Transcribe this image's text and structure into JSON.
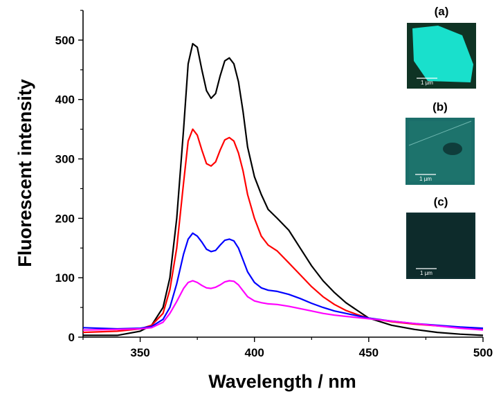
{
  "chart_data": {
    "type": "line",
    "title": "",
    "xlabel": "Wavelength / nm",
    "ylabel": "Fluorescent intensity",
    "xlim": [
      325,
      500
    ],
    "ylim": [
      0,
      550
    ],
    "xticks": [
      350,
      400,
      450,
      500
    ],
    "yticks": [
      0,
      100,
      200,
      300,
      400,
      500
    ],
    "grid": false,
    "legend": "none",
    "series": [
      {
        "color": "#000000",
        "points": [
          [
            325,
            3
          ],
          [
            340,
            3
          ],
          [
            350,
            10
          ],
          [
            355,
            20
          ],
          [
            360,
            50
          ],
          [
            363,
            100
          ],
          [
            366,
            200
          ],
          [
            369,
            350
          ],
          [
            371,
            460
          ],
          [
            373,
            494
          ],
          [
            375,
            488
          ],
          [
            377,
            450
          ],
          [
            379,
            415
          ],
          [
            381,
            402
          ],
          [
            383,
            410
          ],
          [
            385,
            440
          ],
          [
            387,
            465
          ],
          [
            389,
            470
          ],
          [
            391,
            460
          ],
          [
            393,
            430
          ],
          [
            395,
            380
          ],
          [
            397,
            320
          ],
          [
            400,
            270
          ],
          [
            403,
            240
          ],
          [
            406,
            215
          ],
          [
            410,
            200
          ],
          [
            415,
            180
          ],
          [
            420,
            150
          ],
          [
            425,
            120
          ],
          [
            430,
            95
          ],
          [
            435,
            75
          ],
          [
            440,
            58
          ],
          [
            445,
            45
          ],
          [
            450,
            32
          ],
          [
            460,
            20
          ],
          [
            470,
            13
          ],
          [
            480,
            8
          ],
          [
            490,
            5
          ],
          [
            500,
            3
          ]
        ]
      },
      {
        "color": "#ff0000",
        "points": [
          [
            325,
            8
          ],
          [
            340,
            10
          ],
          [
            350,
            14
          ],
          [
            355,
            20
          ],
          [
            360,
            40
          ],
          [
            363,
            80
          ],
          [
            366,
            150
          ],
          [
            369,
            260
          ],
          [
            371,
            330
          ],
          [
            373,
            350
          ],
          [
            375,
            340
          ],
          [
            377,
            315
          ],
          [
            379,
            292
          ],
          [
            381,
            288
          ],
          [
            383,
            295
          ],
          [
            385,
            315
          ],
          [
            387,
            332
          ],
          [
            389,
            336
          ],
          [
            391,
            330
          ],
          [
            393,
            310
          ],
          [
            395,
            280
          ],
          [
            397,
            240
          ],
          [
            400,
            200
          ],
          [
            403,
            170
          ],
          [
            406,
            155
          ],
          [
            410,
            145
          ],
          [
            415,
            125
          ],
          [
            420,
            105
          ],
          [
            425,
            85
          ],
          [
            430,
            68
          ],
          [
            435,
            55
          ],
          [
            440,
            45
          ],
          [
            445,
            38
          ],
          [
            450,
            32
          ],
          [
            460,
            26
          ],
          [
            470,
            22
          ],
          [
            480,
            19
          ],
          [
            490,
            16
          ],
          [
            500,
            13
          ]
        ]
      },
      {
        "color": "#0000ff",
        "points": [
          [
            325,
            16
          ],
          [
            340,
            14
          ],
          [
            350,
            15
          ],
          [
            355,
            18
          ],
          [
            360,
            30
          ],
          [
            363,
            50
          ],
          [
            366,
            90
          ],
          [
            369,
            140
          ],
          [
            371,
            165
          ],
          [
            373,
            175
          ],
          [
            375,
            170
          ],
          [
            377,
            160
          ],
          [
            379,
            148
          ],
          [
            381,
            144
          ],
          [
            383,
            146
          ],
          [
            385,
            155
          ],
          [
            387,
            163
          ],
          [
            389,
            165
          ],
          [
            391,
            162
          ],
          [
            393,
            150
          ],
          [
            395,
            130
          ],
          [
            397,
            110
          ],
          [
            400,
            92
          ],
          [
            403,
            83
          ],
          [
            406,
            79
          ],
          [
            410,
            77
          ],
          [
            415,
            72
          ],
          [
            420,
            65
          ],
          [
            425,
            57
          ],
          [
            430,
            50
          ],
          [
            435,
            44
          ],
          [
            440,
            40
          ],
          [
            445,
            36
          ],
          [
            450,
            32
          ],
          [
            460,
            27
          ],
          [
            470,
            23
          ],
          [
            480,
            20
          ],
          [
            490,
            17
          ],
          [
            500,
            15
          ]
        ]
      },
      {
        "color": "#ff00ff",
        "points": [
          [
            325,
            12
          ],
          [
            340,
            13
          ],
          [
            350,
            14
          ],
          [
            355,
            16
          ],
          [
            360,
            25
          ],
          [
            363,
            40
          ],
          [
            366,
            60
          ],
          [
            369,
            82
          ],
          [
            371,
            92
          ],
          [
            373,
            95
          ],
          [
            375,
            92
          ],
          [
            377,
            87
          ],
          [
            379,
            83
          ],
          [
            381,
            82
          ],
          [
            383,
            84
          ],
          [
            385,
            88
          ],
          [
            387,
            93
          ],
          [
            389,
            95
          ],
          [
            391,
            94
          ],
          [
            393,
            88
          ],
          [
            395,
            78
          ],
          [
            397,
            68
          ],
          [
            400,
            61
          ],
          [
            403,
            58
          ],
          [
            406,
            56
          ],
          [
            410,
            55
          ],
          [
            415,
            52
          ],
          [
            420,
            48
          ],
          [
            425,
            44
          ],
          [
            430,
            40
          ],
          [
            435,
            37
          ],
          [
            440,
            35
          ],
          [
            445,
            33
          ],
          [
            450,
            31
          ],
          [
            460,
            27
          ],
          [
            470,
            23
          ],
          [
            480,
            19
          ],
          [
            490,
            15
          ],
          [
            500,
            12
          ]
        ]
      }
    ]
  },
  "insets": [
    {
      "label": "(a)",
      "scale_text": "1 µm",
      "fill": "#19e0cc",
      "bg": "#0f3324"
    },
    {
      "label": "(b)",
      "scale_text": "1 µm",
      "fill": "#20766e",
      "bg": "#1b6e6a"
    },
    {
      "label": "(c)",
      "scale_text": "1 µm",
      "fill": "#0d2b2b",
      "bg": "#0f2f30"
    }
  ]
}
